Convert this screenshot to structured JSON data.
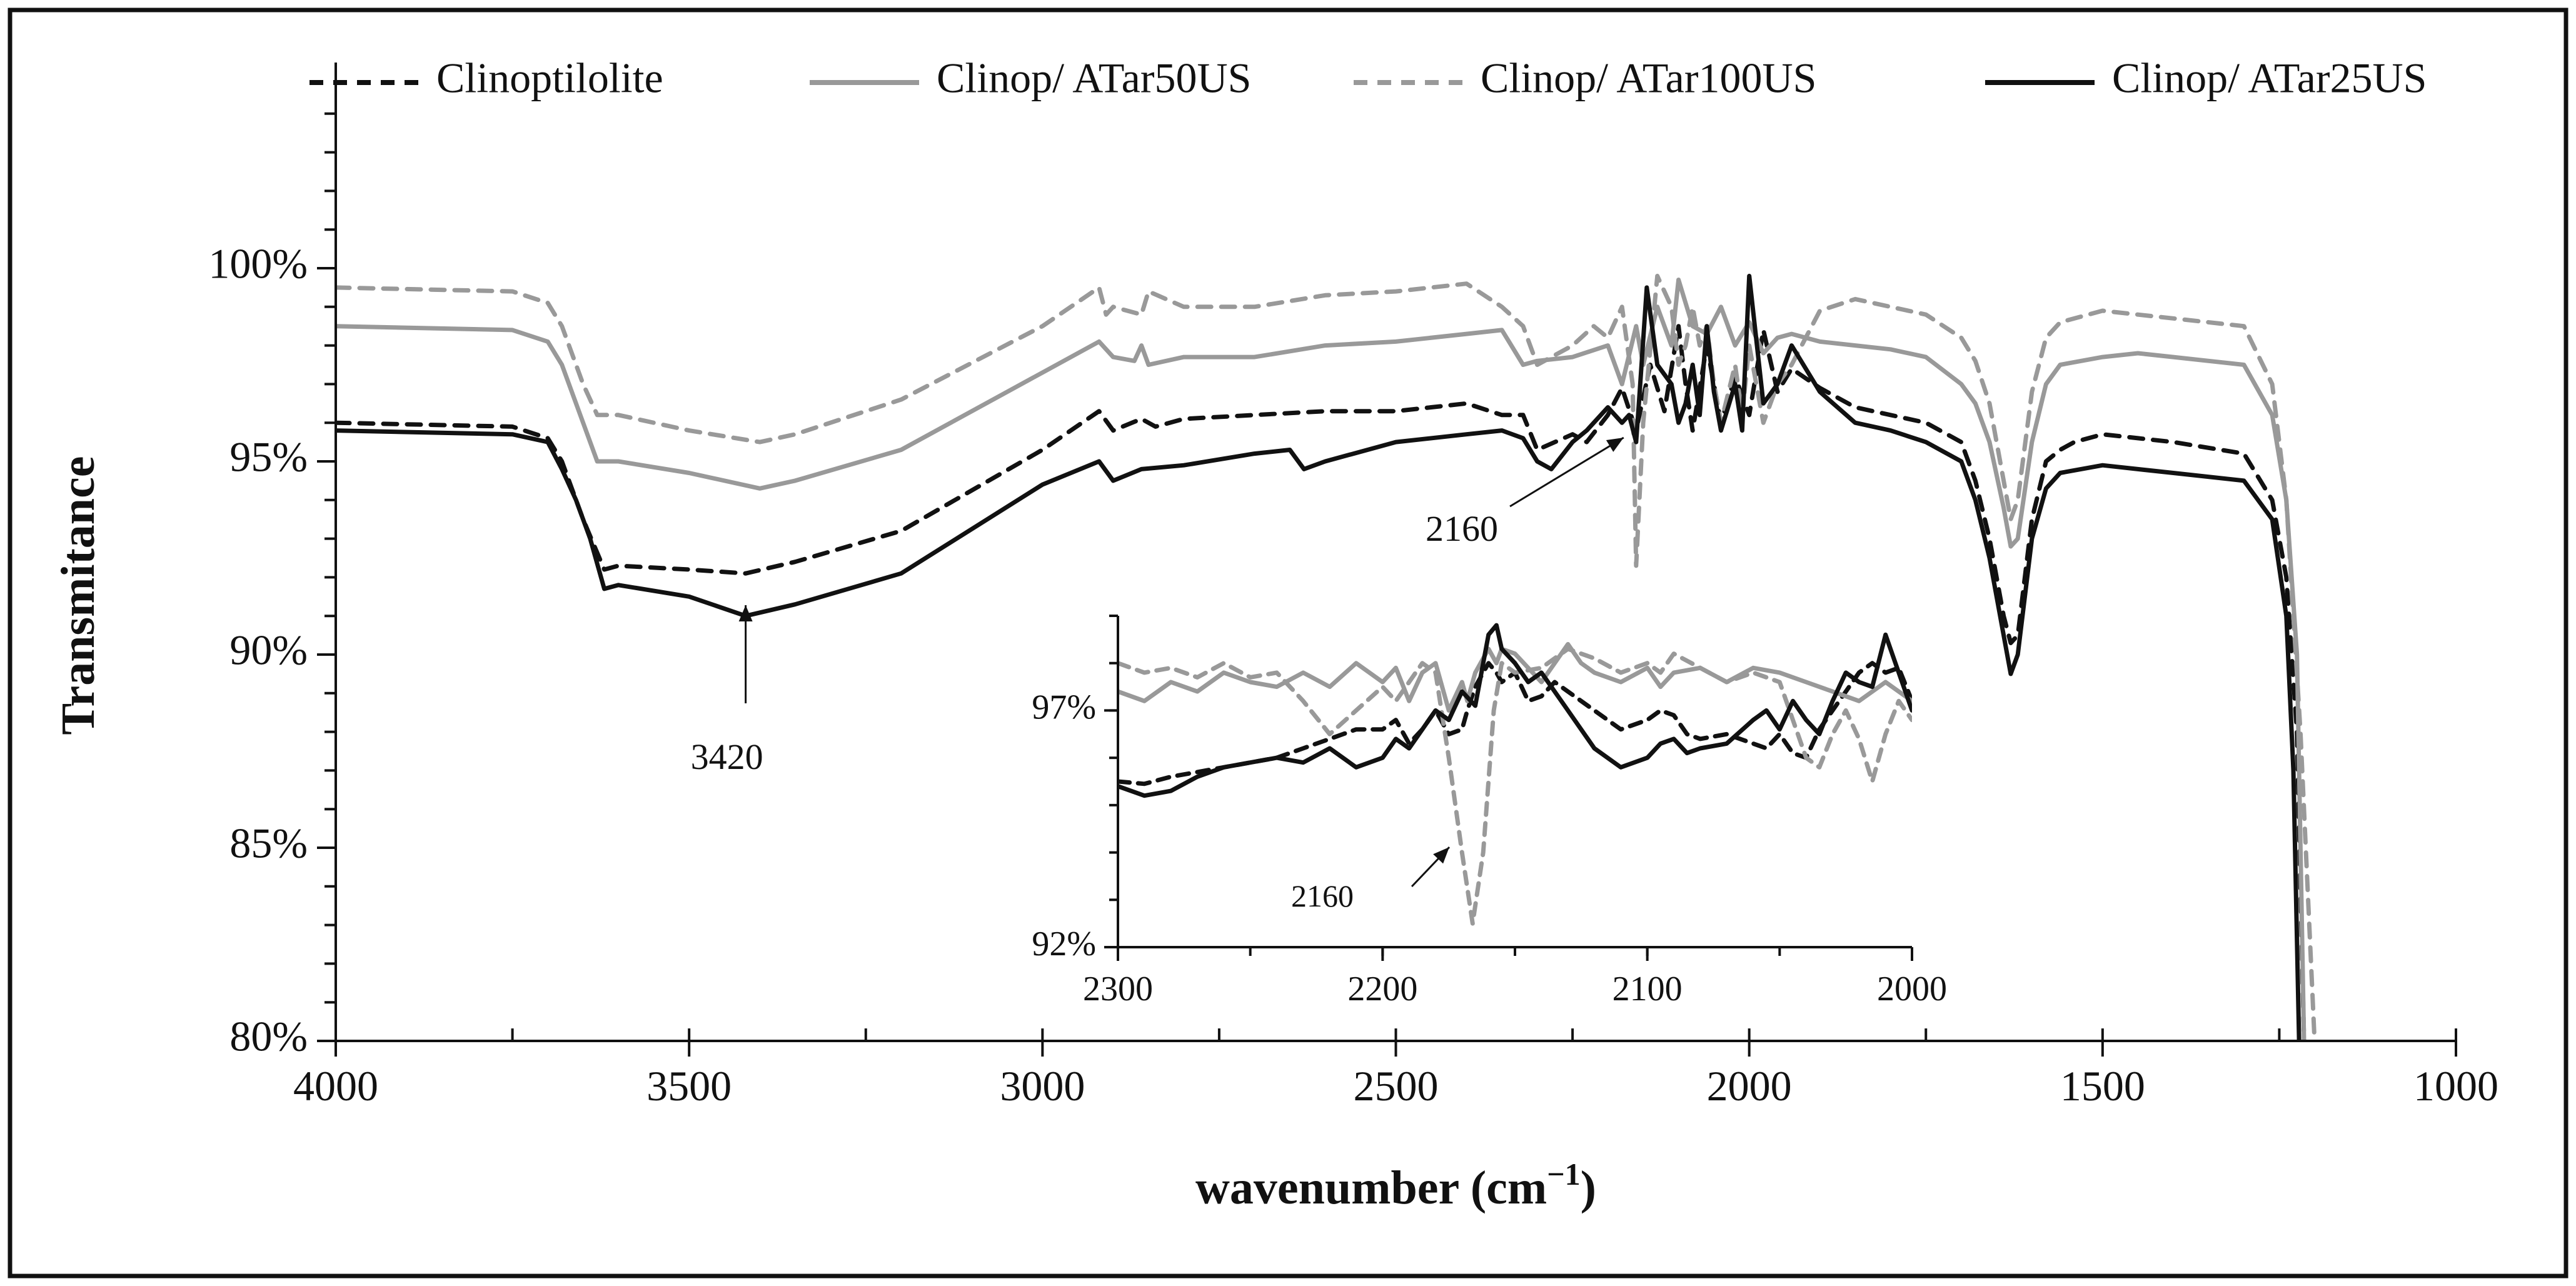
{
  "chart_data": {
    "type": "line",
    "title": "",
    "xlabel": "wavenumber (cm",
    "xlabel_sup": "−1",
    "xlabel_close": ")",
    "ylabel": "Transmitance",
    "xlim": [
      4000,
      1000
    ],
    "ylim": [
      0.8,
      1.05
    ],
    "xticks": [
      {
        "value": 4000,
        "label": "4000"
      },
      {
        "value": 3500,
        "label": "3500"
      },
      {
        "value": 3000,
        "label": "3000"
      },
      {
        "value": 2500,
        "label": "2500"
      },
      {
        "value": 2000,
        "label": "2000"
      },
      {
        "value": 1500,
        "label": "1500"
      },
      {
        "value": 1000,
        "label": "1000"
      }
    ],
    "yticks": [
      {
        "value": 0.8,
        "label": "80%"
      },
      {
        "value": 0.85,
        "label": "85%"
      },
      {
        "value": 0.9,
        "label": "90%"
      },
      {
        "value": 0.95,
        "label": "95%"
      },
      {
        "value": 1.0,
        "label": "100%"
      }
    ],
    "legend_position": "top",
    "series": [
      {
        "name": "Clinoptilolite",
        "color": "#111111",
        "dash": "dashed",
        "x": [
          4000,
          3750,
          3700,
          3680,
          3650,
          3620,
          3600,
          3500,
          3420,
          3350,
          3200,
          3000,
          2920,
          2900,
          2860,
          2840,
          2800,
          2700,
          2600,
          2500,
          2400,
          2350,
          2320,
          2300,
          2250,
          2230,
          2200,
          2180,
          2160,
          2140,
          2120,
          2100,
          2090,
          2080,
          2060,
          2040,
          2020,
          2000,
          1980,
          1960,
          1940,
          1900,
          1850,
          1800,
          1750,
          1700,
          1680,
          1660,
          1640,
          1630,
          1620,
          1600,
          1580,
          1560,
          1540,
          1500,
          1450,
          1400,
          1300,
          1260,
          1240,
          1225,
          1215
        ],
        "y": [
          0.96,
          0.959,
          0.956,
          0.95,
          0.935,
          0.922,
          0.923,
          0.922,
          0.921,
          0.924,
          0.932,
          0.953,
          0.963,
          0.958,
          0.961,
          0.959,
          0.961,
          0.962,
          0.963,
          0.963,
          0.965,
          0.962,
          0.962,
          0.953,
          0.957,
          0.955,
          0.962,
          0.969,
          0.958,
          0.975,
          0.963,
          0.985,
          0.97,
          0.958,
          0.98,
          0.96,
          0.972,
          0.962,
          0.984,
          0.968,
          0.974,
          0.969,
          0.964,
          0.962,
          0.96,
          0.955,
          0.945,
          0.93,
          0.91,
          0.903,
          0.905,
          0.935,
          0.95,
          0.953,
          0.955,
          0.957,
          0.956,
          0.955,
          0.952,
          0.94,
          0.92,
          0.88,
          0.8
        ]
      },
      {
        "name": "Clinop/ ATar50US",
        "color": "#999999",
        "dash": "solid",
        "x": [
          4000,
          3750,
          3700,
          3680,
          3650,
          3630,
          3600,
          3500,
          3400,
          3350,
          3200,
          3000,
          2920,
          2900,
          2870,
          2860,
          2850,
          2800,
          2700,
          2600,
          2500,
          2400,
          2350,
          2320,
          2300,
          2250,
          2200,
          2180,
          2160,
          2150,
          2130,
          2110,
          2100,
          2080,
          2060,
          2040,
          2020,
          2000,
          1980,
          1960,
          1940,
          1900,
          1850,
          1800,
          1750,
          1700,
          1680,
          1660,
          1640,
          1630,
          1620,
          1600,
          1580,
          1560,
          1500,
          1450,
          1400,
          1300,
          1260,
          1240,
          1225,
          1215
        ],
        "y": [
          0.985,
          0.984,
          0.981,
          0.975,
          0.96,
          0.95,
          0.95,
          0.947,
          0.943,
          0.945,
          0.953,
          0.973,
          0.981,
          0.977,
          0.976,
          0.98,
          0.975,
          0.977,
          0.977,
          0.98,
          0.981,
          0.983,
          0.984,
          0.975,
          0.976,
          0.977,
          0.98,
          0.97,
          0.985,
          0.975,
          0.99,
          0.98,
          0.997,
          0.985,
          0.983,
          0.99,
          0.98,
          0.986,
          0.978,
          0.982,
          0.983,
          0.981,
          0.98,
          0.979,
          0.977,
          0.97,
          0.965,
          0.955,
          0.938,
          0.928,
          0.93,
          0.955,
          0.97,
          0.975,
          0.977,
          0.978,
          0.977,
          0.975,
          0.962,
          0.94,
          0.9,
          0.8
        ]
      },
      {
        "name": "Clinop/ ATar100US",
        "color": "#999999",
        "dash": "dashed",
        "x": [
          4000,
          3750,
          3700,
          3680,
          3650,
          3630,
          3600,
          3500,
          3400,
          3350,
          3200,
          3000,
          2920,
          2910,
          2900,
          2860,
          2850,
          2800,
          2700,
          2600,
          2500,
          2400,
          2350,
          2320,
          2300,
          2250,
          2220,
          2200,
          2180,
          2165,
          2160,
          2150,
          2130,
          2110,
          2100,
          2090,
          2080,
          2070,
          2060,
          2050,
          2040,
          2020,
          2010,
          2000,
          1980,
          1960,
          1940,
          1900,
          1850,
          1800,
          1750,
          1700,
          1680,
          1660,
          1640,
          1630,
          1620,
          1600,
          1580,
          1560,
          1500,
          1450,
          1400,
          1300,
          1260,
          1240,
          1220,
          1200
        ],
        "y": [
          0.995,
          0.994,
          0.991,
          0.985,
          0.97,
          0.962,
          0.962,
          0.958,
          0.955,
          0.957,
          0.966,
          0.985,
          0.995,
          0.988,
          0.99,
          0.988,
          0.994,
          0.99,
          0.99,
          0.993,
          0.994,
          0.996,
          0.99,
          0.985,
          0.975,
          0.98,
          0.985,
          0.982,
          0.99,
          0.97,
          0.923,
          0.96,
          0.998,
          0.99,
          0.975,
          0.98,
          0.99,
          0.98,
          0.985,
          0.97,
          0.96,
          0.975,
          0.962,
          0.98,
          0.96,
          0.97,
          0.975,
          0.989,
          0.992,
          0.99,
          0.988,
          0.982,
          0.976,
          0.965,
          0.945,
          0.935,
          0.94,
          0.968,
          0.982,
          0.986,
          0.989,
          0.988,
          0.987,
          0.985,
          0.97,
          0.94,
          0.88,
          0.8
        ]
      },
      {
        "name": "Clinop/ ATar25US",
        "color": "#111111",
        "dash": "solid",
        "x": [
          4000,
          3750,
          3700,
          3680,
          3660,
          3640,
          3620,
          3600,
          3500,
          3420,
          3350,
          3200,
          3000,
          2920,
          2900,
          2860,
          2800,
          2700,
          2650,
          2630,
          2600,
          2500,
          2400,
          2350,
          2320,
          2300,
          2280,
          2250,
          2230,
          2200,
          2180,
          2170,
          2160,
          2155,
          2145,
          2130,
          2110,
          2100,
          2090,
          2080,
          2070,
          2060,
          2050,
          2040,
          2020,
          2010,
          2000,
          1980,
          1960,
          1940,
          1900,
          1850,
          1800,
          1750,
          1700,
          1680,
          1660,
          1640,
          1630,
          1620,
          1600,
          1580,
          1560,
          1500,
          1450,
          1400,
          1300,
          1260,
          1240,
          1230,
          1222
        ],
        "y": [
          0.958,
          0.957,
          0.955,
          0.948,
          0.94,
          0.93,
          0.917,
          0.918,
          0.915,
          0.91,
          0.913,
          0.921,
          0.944,
          0.95,
          0.945,
          0.948,
          0.949,
          0.952,
          0.953,
          0.948,
          0.95,
          0.955,
          0.957,
          0.958,
          0.956,
          0.95,
          0.948,
          0.955,
          0.958,
          0.964,
          0.96,
          0.962,
          0.955,
          0.968,
          0.995,
          0.975,
          0.97,
          0.96,
          0.965,
          0.975,
          0.962,
          0.985,
          0.968,
          0.958,
          0.97,
          0.958,
          0.998,
          0.965,
          0.97,
          0.98,
          0.968,
          0.96,
          0.958,
          0.955,
          0.95,
          0.94,
          0.925,
          0.905,
          0.895,
          0.9,
          0.93,
          0.943,
          0.947,
          0.949,
          0.948,
          0.947,
          0.945,
          0.935,
          0.91,
          0.87,
          0.8
        ]
      }
    ],
    "annotations": [
      {
        "text": "3420",
        "arrow_to_x": 3420
      },
      {
        "text": "2160",
        "arrow_to_x": 2160
      }
    ],
    "inset": {
      "type": "line",
      "xlim": [
        2300,
        2000
      ],
      "ylim": [
        0.92,
        0.99
      ],
      "xticks": [
        {
          "value": 2300,
          "label": "2300"
        },
        {
          "value": 2200,
          "label": "2200"
        },
        {
          "value": 2100,
          "label": "2100"
        },
        {
          "value": 2000,
          "label": "2000"
        }
      ],
      "yticks": [
        {
          "value": 0.92,
          "label": "92%"
        },
        {
          "value": 0.97,
          "label": "97%"
        }
      ],
      "annotation": {
        "text": "2160"
      },
      "series": [
        {
          "name": "Clinoptilolite",
          "color": "#111111",
          "dash": "dashed",
          "x": [
            2300,
            2290,
            2280,
            2270,
            2260,
            2250,
            2240,
            2230,
            2220,
            2210,
            2200,
            2195,
            2190,
            2185,
            2180,
            2175,
            2170,
            2168,
            2165,
            2160,
            2157,
            2155,
            2150,
            2145,
            2140,
            2135,
            2130,
            2120,
            2110,
            2100,
            2095,
            2090,
            2085,
            2080,
            2070,
            2060,
            2055,
            2050,
            2045,
            2040,
            2035,
            2030,
            2025,
            2020,
            2015,
            2010,
            2005,
            2000
          ],
          "y": [
            0.955,
            0.9545,
            0.956,
            0.957,
            0.958,
            0.959,
            0.96,
            0.962,
            0.964,
            0.966,
            0.966,
            0.968,
            0.963,
            0.966,
            0.97,
            0.965,
            0.966,
            0.97,
            0.975,
            0.98,
            0.978,
            0.976,
            0.978,
            0.972,
            0.973,
            0.976,
            0.974,
            0.97,
            0.966,
            0.968,
            0.97,
            0.969,
            0.965,
            0.964,
            0.965,
            0.963,
            0.962,
            0.965,
            0.961,
            0.96,
            0.966,
            0.97,
            0.974,
            0.978,
            0.98,
            0.978,
            0.979,
            0.972
          ]
        },
        {
          "name": "Clinop/ ATar50US",
          "color": "#999999",
          "dash": "solid",
          "x": [
            2300,
            2290,
            2280,
            2270,
            2260,
            2250,
            2240,
            2230,
            2220,
            2210,
            2200,
            2195,
            2190,
            2185,
            2180,
            2175,
            2170,
            2168,
            2165,
            2160,
            2157,
            2155,
            2150,
            2140,
            2135,
            2130,
            2125,
            2120,
            2110,
            2100,
            2095,
            2090,
            2080,
            2070,
            2060,
            2050,
            2040,
            2030,
            2020,
            2010,
            2000
          ],
          "y": [
            0.974,
            0.972,
            0.976,
            0.974,
            0.978,
            0.976,
            0.975,
            0.978,
            0.975,
            0.98,
            0.976,
            0.979,
            0.972,
            0.978,
            0.98,
            0.97,
            0.976,
            0.972,
            0.978,
            0.983,
            0.98,
            0.983,
            0.982,
            0.976,
            0.98,
            0.984,
            0.98,
            0.978,
            0.976,
            0.979,
            0.975,
            0.978,
            0.979,
            0.976,
            0.979,
            0.978,
            0.976,
            0.974,
            0.972,
            0.976,
            0.972
          ]
        },
        {
          "name": "Clinop/ ATar100US",
          "color": "#999999",
          "dash": "dashed",
          "x": [
            2300,
            2290,
            2280,
            2270,
            2260,
            2250,
            2240,
            2230,
            2220,
            2210,
            2200,
            2195,
            2190,
            2185,
            2180,
            2175,
            2170,
            2166,
            2162,
            2158,
            2155,
            2150,
            2140,
            2130,
            2120,
            2110,
            2100,
            2095,
            2090,
            2080,
            2070,
            2060,
            2050,
            2045,
            2040,
            2035,
            2030,
            2025,
            2020,
            2015,
            2010,
            2005,
            2000
          ],
          "y": [
            0.98,
            0.978,
            0.979,
            0.977,
            0.98,
            0.977,
            0.978,
            0.972,
            0.965,
            0.97,
            0.975,
            0.972,
            0.976,
            0.98,
            0.978,
            0.96,
            0.94,
            0.925,
            0.94,
            0.97,
            0.98,
            0.978,
            0.979,
            0.983,
            0.981,
            0.978,
            0.98,
            0.978,
            0.982,
            0.979,
            0.976,
            0.978,
            0.976,
            0.968,
            0.96,
            0.958,
            0.965,
            0.97,
            0.964,
            0.955,
            0.965,
            0.972,
            0.968
          ]
        },
        {
          "name": "Clinop/ ATar25US",
          "color": "#111111",
          "dash": "solid",
          "x": [
            2300,
            2290,
            2280,
            2270,
            2260,
            2250,
            2240,
            2230,
            2220,
            2210,
            2200,
            2195,
            2190,
            2185,
            2180,
            2175,
            2170,
            2165,
            2160,
            2157,
            2155,
            2150,
            2145,
            2140,
            2130,
            2120,
            2110,
            2100,
            2095,
            2090,
            2085,
            2080,
            2070,
            2060,
            2055,
            2050,
            2045,
            2040,
            2035,
            2030,
            2025,
            2020,
            2015,
            2010,
            2005,
            2000
          ],
          "y": [
            0.954,
            0.952,
            0.953,
            0.956,
            0.958,
            0.959,
            0.96,
            0.959,
            0.962,
            0.958,
            0.96,
            0.964,
            0.962,
            0.966,
            0.97,
            0.968,
            0.974,
            0.971,
            0.986,
            0.988,
            0.983,
            0.98,
            0.976,
            0.978,
            0.97,
            0.962,
            0.958,
            0.96,
            0.963,
            0.964,
            0.961,
            0.962,
            0.963,
            0.968,
            0.97,
            0.966,
            0.972,
            0.968,
            0.965,
            0.972,
            0.978,
            0.976,
            0.975,
            0.986,
            0.978,
            0.97
          ]
        }
      ]
    }
  }
}
